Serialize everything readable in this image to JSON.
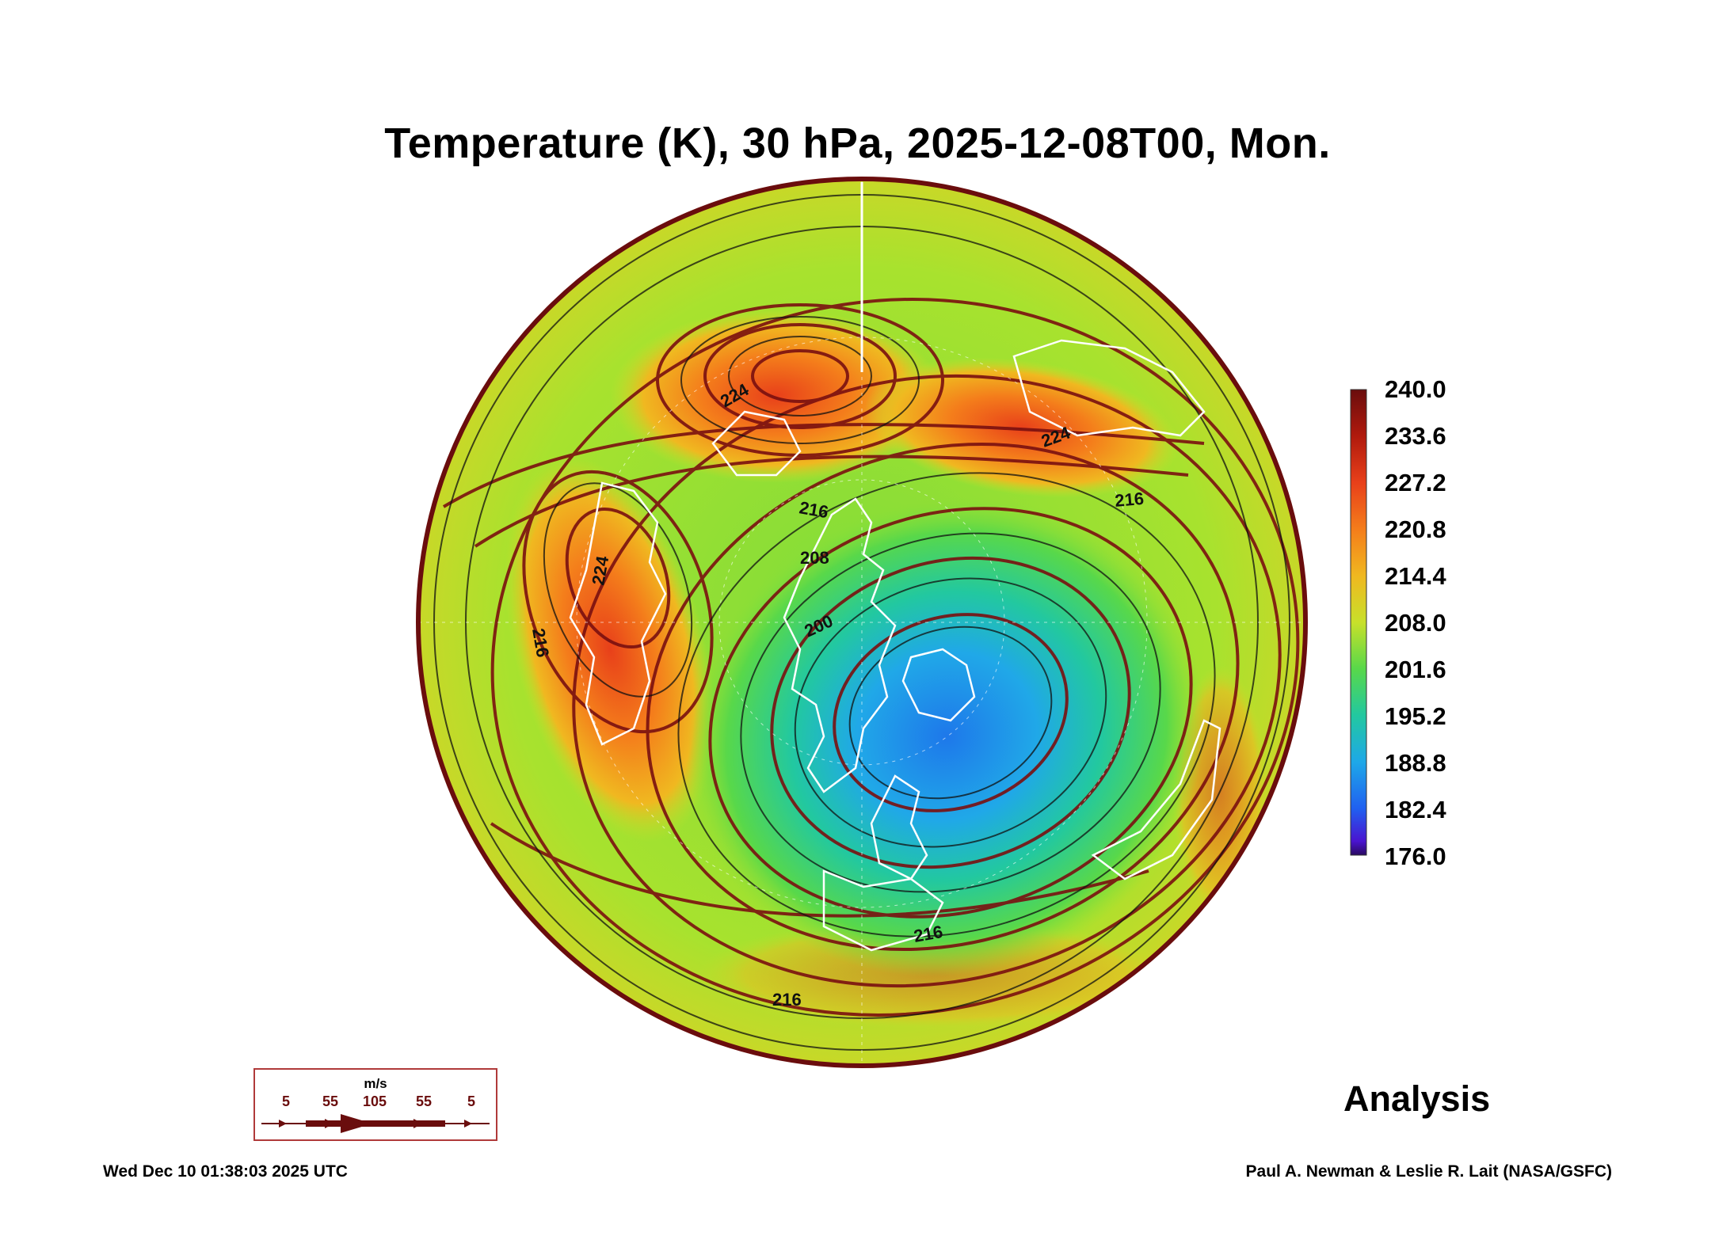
{
  "title": "Temperature (K), 30 hPa, 2025-12-08T00, Mon.",
  "colorbar": {
    "labels": [
      "240.0",
      "233.6",
      "227.2",
      "220.8",
      "214.4",
      "208.0",
      "201.6",
      "195.2",
      "188.8",
      "182.4",
      "176.0"
    ],
    "colors": [
      "#6a0d0d",
      "#b01a0d",
      "#e8401a",
      "#f47d1b",
      "#f0b820",
      "#c8e02a",
      "#58d84a",
      "#22c8a0",
      "#1ea8e8",
      "#2060f0",
      "#4a14d0",
      "#2a0a60"
    ]
  },
  "contour_labels": [
    "224",
    "224",
    "216",
    "216",
    "224",
    "216",
    "208",
    "200",
    "216",
    "216"
  ],
  "legend": {
    "unit": "m/s",
    "speeds": [
      "5",
      "55",
      "105",
      "55",
      "5"
    ]
  },
  "stamp": "Analysis",
  "timestamp": "Wed Dec 10 01:38:03 2025 UTC",
  "credit": "Paul A. Newman & Leslie R. Lait (NASA/GSFC)",
  "colors": {
    "warm_core": "#f05a12",
    "cold_core": "#1a8ee8",
    "background_field": "#8fe035",
    "streamline": "#6a0d0d",
    "coastline": "#ffffff"
  }
}
